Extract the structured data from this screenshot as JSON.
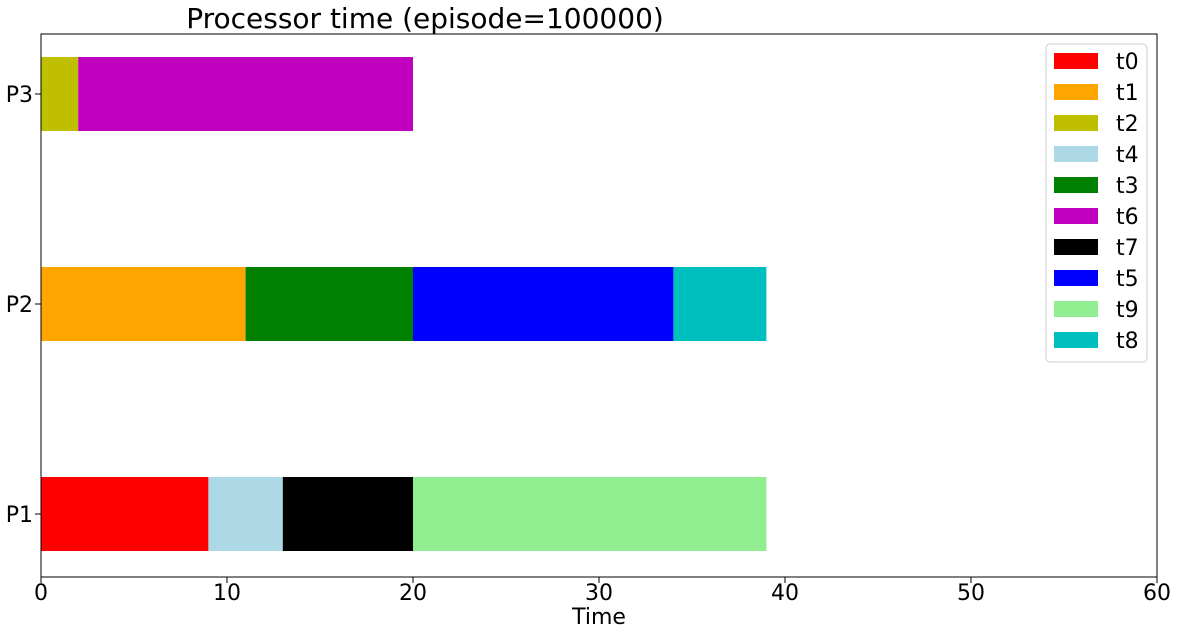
{
  "chart_data": {
    "type": "bar",
    "orientation": "horizontal",
    "title": "Processor time (episode=100000)",
    "xlabel": "Time",
    "ylabel": "",
    "xlim": [
      0,
      60
    ],
    "xticks": [
      0,
      10,
      20,
      30,
      40,
      50,
      60
    ],
    "categories": [
      "P1",
      "P2",
      "P3"
    ],
    "grid": false,
    "legend_position": "top-right",
    "legend": [
      {
        "name": "t0",
        "color": "#ff0000"
      },
      {
        "name": "t1",
        "color": "#ffa500"
      },
      {
        "name": "t2",
        "color": "#bfbf00"
      },
      {
        "name": "t4",
        "color": "#add8e6"
      },
      {
        "name": "t3",
        "color": "#008000"
      },
      {
        "name": "t6",
        "color": "#bf00bf"
      },
      {
        "name": "t7",
        "color": "#000000"
      },
      {
        "name": "t5",
        "color": "#0000ff"
      },
      {
        "name": "t9",
        "color": "#90ee90"
      },
      {
        "name": "t8",
        "color": "#00bfbf"
      }
    ],
    "segments": [
      {
        "task": "t0",
        "processor": "P1",
        "start": 0,
        "end": 9
      },
      {
        "task": "t4",
        "processor": "P1",
        "start": 9,
        "end": 13
      },
      {
        "task": "t7",
        "processor": "P1",
        "start": 13,
        "end": 20
      },
      {
        "task": "t9",
        "processor": "P1",
        "start": 20,
        "end": 39
      },
      {
        "task": "t1",
        "processor": "P2",
        "start": 0,
        "end": 11
      },
      {
        "task": "t3",
        "processor": "P2",
        "start": 11,
        "end": 20
      },
      {
        "task": "t5",
        "processor": "P2",
        "start": 20,
        "end": 34
      },
      {
        "task": "t8",
        "processor": "P2",
        "start": 34,
        "end": 39
      },
      {
        "task": "t2",
        "processor": "P3",
        "start": 0,
        "end": 2
      },
      {
        "task": "t6",
        "processor": "P3",
        "start": 2,
        "end": 20
      }
    ]
  }
}
